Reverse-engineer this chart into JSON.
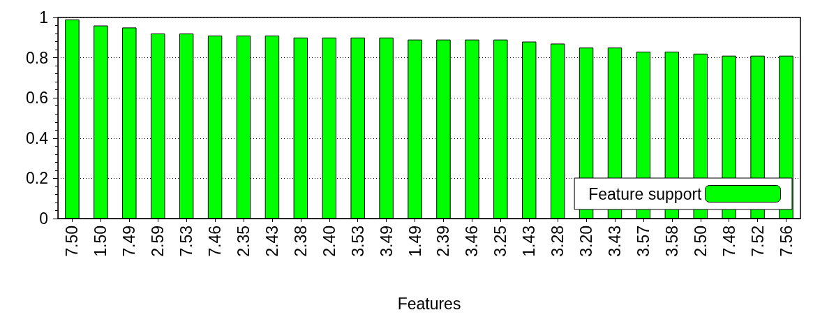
{
  "chart_data": {
    "type": "bar",
    "xlabel": "Features",
    "categories": [
      "7.50",
      "1.50",
      "7.49",
      "2.59",
      "7.53",
      "7.46",
      "2.35",
      "2.43",
      "2.38",
      "2.40",
      "3.53",
      "3.49",
      "1.49",
      "2.39",
      "3.46",
      "3.25",
      "1.43",
      "3.28",
      "3.20",
      "3.43",
      "3.57",
      "3.58",
      "2.50",
      "7.48",
      "7.52",
      "7.56"
    ],
    "series": [
      {
        "name": "Feature support",
        "color": "#00ff00",
        "values": [
          0.99,
          0.96,
          0.95,
          0.92,
          0.92,
          0.91,
          0.91,
          0.91,
          0.9,
          0.9,
          0.9,
          0.9,
          0.89,
          0.89,
          0.89,
          0.89,
          0.88,
          0.87,
          0.85,
          0.85,
          0.83,
          0.83,
          0.82,
          0.81,
          0.81,
          0.81
        ]
      }
    ],
    "ylim": [
      0,
      1
    ],
    "yticks": [
      0,
      0.2,
      0.4,
      0.6,
      0.8,
      1
    ],
    "grid": "y",
    "legend": "bottom right"
  }
}
